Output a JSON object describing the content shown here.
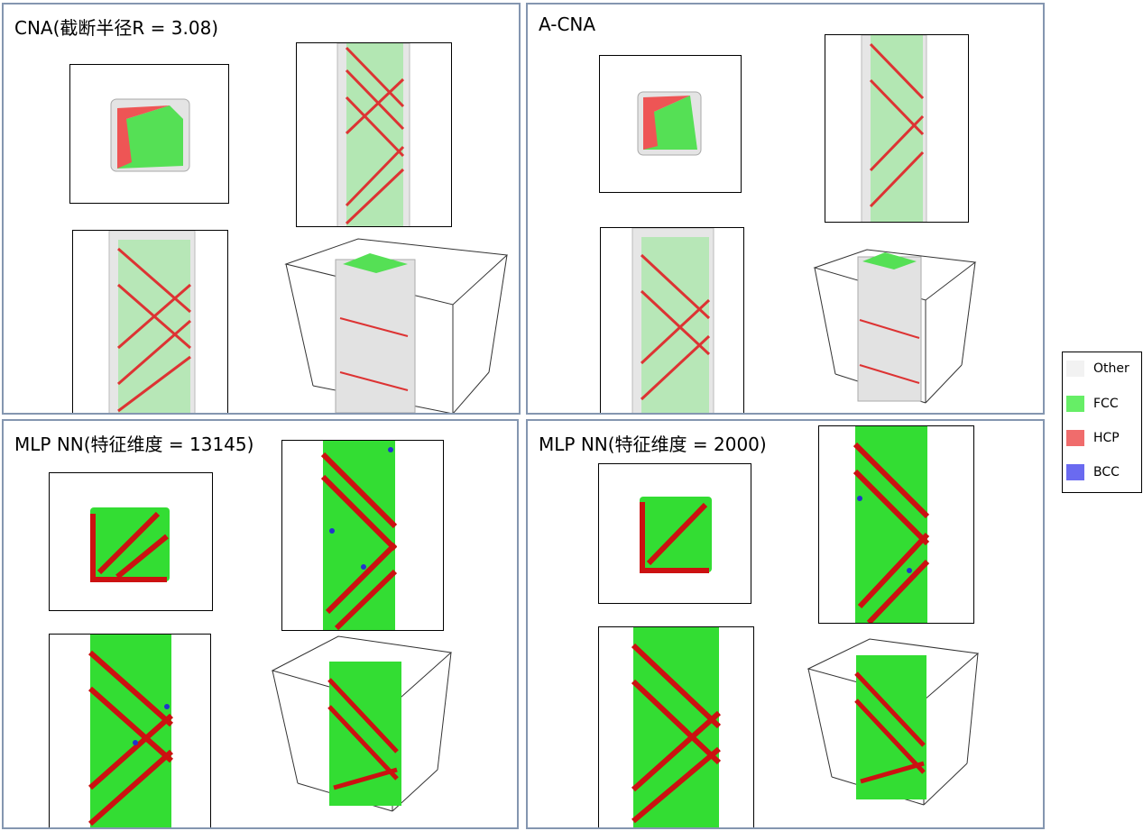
{
  "panels": [
    {
      "title": "CNA(截断半径R = 3.08)",
      "scheme": "cna"
    },
    {
      "title": "A-CNA",
      "scheme": "cna"
    },
    {
      "title": "MLP NN(特征维度 = 13145)",
      "scheme": "mlp"
    },
    {
      "title": "MLP NN(特征维度 = 2000)",
      "scheme": "mlp"
    }
  ],
  "legend": {
    "items": [
      {
        "label": "Other",
        "color": "#f2f2f2"
      },
      {
        "label": "FCC",
        "color": "#66ee66"
      },
      {
        "label": "HCP",
        "color": "#f06c6c"
      },
      {
        "label": "BCC",
        "color": "#6a6af0"
      }
    ]
  },
  "colors": {
    "panel_border": "#8496b0",
    "atom_other": "#dcdcdc",
    "atom_fcc": "#44dd44",
    "atom_hcp": "#dd2222",
    "atom_bcc": "#2233cc"
  }
}
